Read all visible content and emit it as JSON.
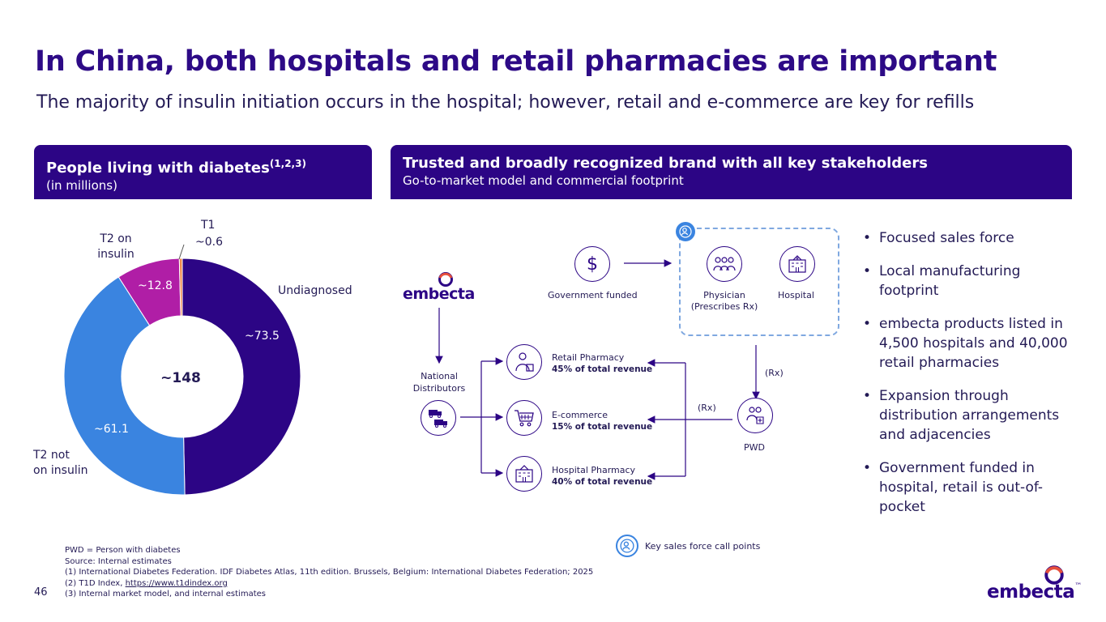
{
  "title": "In China, both hospitals and retail pharmacies are important",
  "subtitle": "The majority of insulin initiation occurs in the hospital; however, retail and e-commerce are key for refills",
  "left_panel": {
    "heading": "People living with diabetes",
    "heading_sup": "(1,2,3)",
    "subheading": "(in millions)"
  },
  "right_panel": {
    "heading": "Trusted and broadly recognized brand with all key stakeholders",
    "subheading": "Go-to-market model and commercial footprint"
  },
  "chart_data": {
    "type": "pie",
    "variant": "donut",
    "center_label": "~148",
    "slices": [
      {
        "name": "Undiagnosed",
        "value": 73.5,
        "label": "~73.5",
        "color": "#2c0585"
      },
      {
        "name": "T2 not on insulin",
        "value": 61.1,
        "label": "~61.1",
        "color": "#3a84e0"
      },
      {
        "name": "T2 on insulin",
        "value": 12.8,
        "label": "~12.8",
        "color": "#b01ea6"
      },
      {
        "name": "T1",
        "value": 0.6,
        "label": "~0.6",
        "color": "#f08a4b"
      }
    ],
    "category_labels": {
      "t1": "T1",
      "t2_on_insulin": "T2 on\ninsulin",
      "undiagnosed": "Undiagnosed",
      "t2_not_on_insulin": "T2 not\non insulin"
    }
  },
  "diagram": {
    "brand": "embecta",
    "government_funded": "Government funded",
    "physician": "Physician\n(Prescribes Rx)",
    "hospital": "Hospital",
    "national_distributors": "National\nDistributors",
    "pwd": "PWD",
    "rx_label_1": "(Rx)",
    "rx_label_2": "(Rx)",
    "channels": [
      {
        "name": "Retail Pharmacy",
        "revenue": "45% of total revenue",
        "icon": "pharmacist-icon"
      },
      {
        "name": "E-commerce",
        "revenue": "15% of total revenue",
        "icon": "shopping-cart-icon"
      },
      {
        "name": "Hospital Pharmacy",
        "revenue": "40% of total revenue",
        "icon": "hospital-icon"
      }
    ],
    "legend": "Key sales force call points",
    "colors": {
      "primary": "#2c0585",
      "dashed_border": "#7fa8e0",
      "call_point": "#3a84e0"
    }
  },
  "bullets": [
    "Focused sales force",
    "Local manufacturing footprint",
    "embecta products listed in 4,500 hospitals and 40,000 retail pharmacies",
    "Expansion through distribution arrangements and adjacencies",
    "Government funded in hospital, retail is out-of-pocket"
  ],
  "footnotes": {
    "line1": "PWD = Person with diabetes",
    "line2": "Source: Internal estimates",
    "line3": "(1) International Diabetes Federation. IDF Diabetes Atlas, 11th edition. Brussels, Belgium: International Diabetes Federation; 2025",
    "line4_prefix": "(2) T1D Index, ",
    "line4_link": "https://www.t1dindex.org",
    "line5": "(3) Internal market model, and internal estimates"
  },
  "page_number": "46",
  "logo": {
    "text": "embecta",
    "tm": "™"
  }
}
